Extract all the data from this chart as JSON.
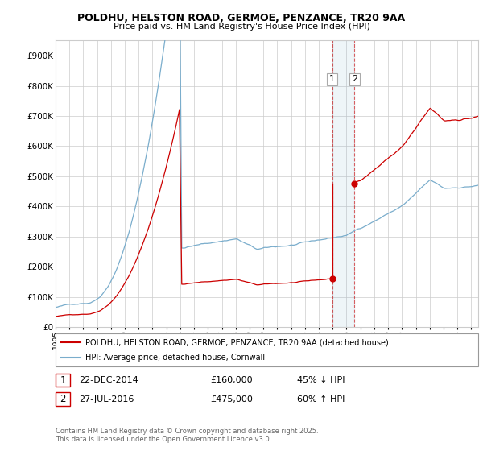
{
  "title1": "POLDHU, HELSTON ROAD, GERMOE, PENZANCE, TR20 9AA",
  "title2": "Price paid vs. HM Land Registry's House Price Index (HPI)",
  "sale1_date": "22-DEC-2014",
  "sale1_price": 160000,
  "sale1_label": "45% ↓ HPI",
  "sale2_date": "27-JUL-2016",
  "sale2_price": 475000,
  "sale2_label": "60% ↑ HPI",
  "legend1": "POLDHU, HELSTON ROAD, GERMOE, PENZANCE, TR20 9AA (detached house)",
  "legend2": "HPI: Average price, detached house, Cornwall",
  "footnote": "Contains HM Land Registry data © Crown copyright and database right 2025.\nThis data is licensed under the Open Government Licence v3.0.",
  "property_color": "#cc0000",
  "hpi_color": "#7aadcc",
  "background_color": "#ffffff",
  "ylim_max": 950000,
  "sale1_x": 2014.97,
  "sale2_x": 2016.58
}
